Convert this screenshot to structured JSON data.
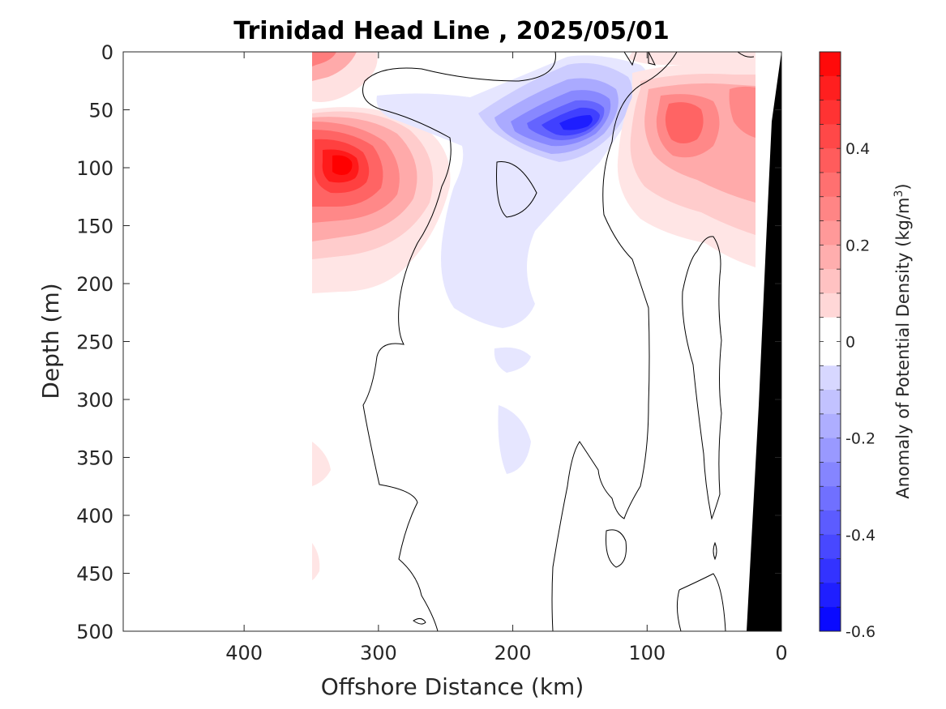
{
  "chart_data": {
    "type": "heatmap",
    "title": "Trinidad Head Line , 2025/05/01",
    "xlabel": "Offshore Distance (km)",
    "ylabel": "Depth (m)",
    "xlim": [
      490,
      0
    ],
    "ylim": [
      0,
      500
    ],
    "x_reversed": true,
    "y_reversed": true,
    "x_ticks": [
      400,
      300,
      200,
      100,
      0
    ],
    "y_ticks": [
      0,
      50,
      100,
      150,
      200,
      250,
      300,
      350,
      400,
      450,
      500
    ],
    "colorbar": {
      "label_main": "Anomaly of Potential Density (kg/m",
      "label_sup": "3",
      "label_end": ")",
      "range": [
        -0.6,
        0.6
      ],
      "ticks": [
        0.4,
        0.2,
        0,
        -0.2,
        -0.4,
        -0.6
      ],
      "tick_labels": [
        "0.4",
        "0.2",
        "0",
        "-0.2",
        "-0.4",
        "-0.6"
      ],
      "levels": 24,
      "colors": {
        "negative": "#0000ff",
        "zero": "#ffffff",
        "positive": "#ff0000"
      }
    },
    "data_start_km": 350,
    "grid": false,
    "features": [
      {
        "name": "positive anomaly core",
        "x": 325,
        "y": 97,
        "value": 0.55
      },
      {
        "name": "positive anomaly",
        "x": 345,
        "y": 5,
        "value": 0.3
      },
      {
        "name": "negative anomaly core",
        "x": 145,
        "y": 62,
        "value": -0.42
      },
      {
        "name": "positive anomaly",
        "x": 80,
        "y": 65,
        "value": 0.28
      },
      {
        "name": "positive anomaly",
        "x": 35,
        "y": 55,
        "value": 0.25
      }
    ],
    "land_color": "#000000"
  }
}
